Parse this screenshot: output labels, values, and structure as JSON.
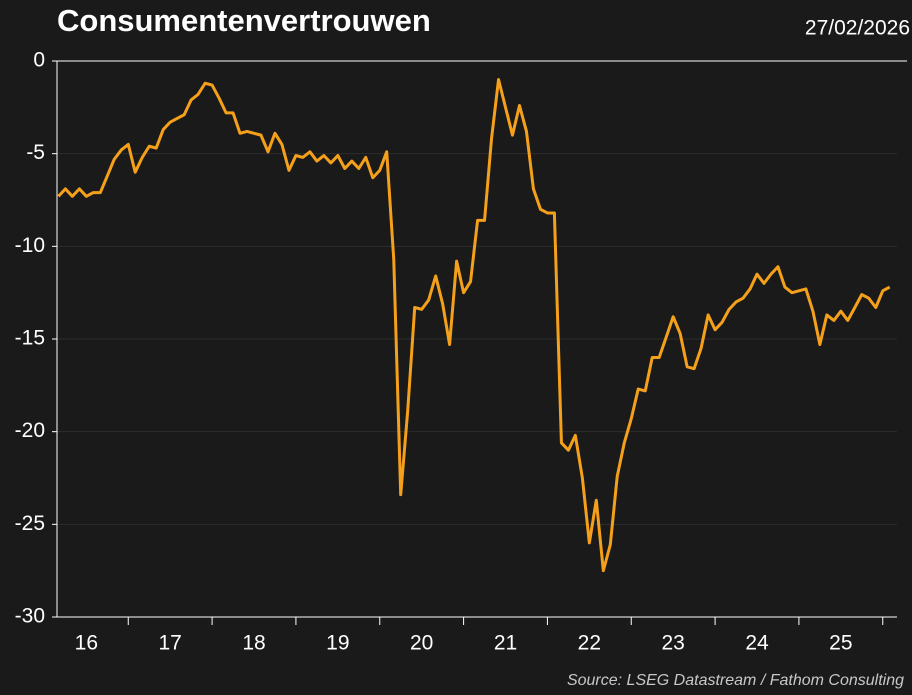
{
  "chart_data": {
    "type": "line",
    "title": "Consumentenvertrouwen",
    "date": "27/02/2026",
    "source": "Source: LSEG Datastream / Fathom Consulting",
    "x": [
      2016.167,
      2016.25,
      2016.333,
      2016.417,
      2016.5,
      2016.583,
      2016.667,
      2016.75,
      2016.833,
      2016.917,
      2017,
      2017.083,
      2017.167,
      2017.25,
      2017.333,
      2017.417,
      2017.5,
      2017.583,
      2017.667,
      2017.75,
      2017.833,
      2017.917,
      2018,
      2018.083,
      2018.167,
      2018.25,
      2018.333,
      2018.417,
      2018.5,
      2018.583,
      2018.667,
      2018.75,
      2018.833,
      2018.917,
      2019,
      2019.083,
      2019.167,
      2019.25,
      2019.333,
      2019.417,
      2019.5,
      2019.583,
      2019.667,
      2019.75,
      2019.833,
      2019.917,
      2020,
      2020.083,
      2020.167,
      2020.25,
      2020.333,
      2020.417,
      2020.5,
      2020.583,
      2020.667,
      2020.75,
      2020.833,
      2020.917,
      2021,
      2021.083,
      2021.167,
      2021.25,
      2021.333,
      2021.417,
      2021.5,
      2021.583,
      2021.667,
      2021.75,
      2021.833,
      2021.917,
      2022,
      2022.083,
      2022.167,
      2022.25,
      2022.333,
      2022.417,
      2022.5,
      2022.583,
      2022.667,
      2022.75,
      2022.833,
      2022.917,
      2023,
      2023.083,
      2023.167,
      2023.25,
      2023.333,
      2023.417,
      2023.5,
      2023.583,
      2023.667,
      2023.75,
      2023.833,
      2023.917,
      2024,
      2024.083,
      2024.167,
      2024.25,
      2024.333,
      2024.417,
      2024.5,
      2024.583,
      2024.667,
      2024.75,
      2024.833,
      2024.917,
      2025,
      2025.083,
      2025.167,
      2025.25,
      2025.333,
      2025.417,
      2025.5,
      2025.583,
      2025.667,
      2025.75,
      2025.833,
      2025.917,
      2026,
      2026.083
    ],
    "series": [
      {
        "color": "#f5a01a",
        "values": [
          -7.3,
          -6.9,
          -7.3,
          -6.9,
          -7.3,
          -7.1,
          -7.1,
          -6.2,
          -5.3,
          -4.8,
          -4.5,
          -6.0,
          -5.2,
          -4.6,
          -4.7,
          -3.7,
          -3.3,
          -3.1,
          -2.9,
          -2.1,
          -1.8,
          -1.2,
          -1.3,
          -2.0,
          -2.8,
          -2.8,
          -3.9,
          -3.8,
          -3.9,
          -4.0,
          -4.9,
          -3.9,
          -4.5,
          -5.9,
          -5.1,
          -5.2,
          -4.9,
          -5.4,
          -5.1,
          -5.5,
          -5.1,
          -5.8,
          -5.4,
          -5.8,
          -5.2,
          -6.3,
          -5.9,
          -4.9,
          -10.7,
          -23.4,
          -18.9,
          -13.3,
          -13.4,
          -12.9,
          -11.6,
          -13.1,
          -15.3,
          -10.8,
          -12.5,
          -11.9,
          -8.6,
          -8.6,
          -4.2,
          -1.0,
          -2.5,
          -4.0,
          -2.4,
          -3.8,
          -6.9,
          -8.0,
          -8.2,
          -8.2,
          -20.6,
          -21.0,
          -20.2,
          -22.5,
          -26.0,
          -23.7,
          -27.5,
          -26.1,
          -22.4,
          -20.6,
          -19.3,
          -17.7,
          -17.8,
          -16.0,
          -16.0,
          -14.9,
          -13.8,
          -14.7,
          -16.5,
          -16.6,
          -15.5,
          -13.7,
          -14.5,
          -14.1,
          -13.4,
          -13.0,
          -12.8,
          -12.3,
          -11.5,
          -12.0,
          -11.5,
          -11.1,
          -12.2,
          -12.5,
          -12.4,
          -12.3,
          -13.5,
          -15.3,
          -13.7,
          -14.0,
          -13.5,
          -14.0,
          -13.3,
          -12.6,
          -12.8,
          -13.3,
          -12.4,
          -12.2
        ]
      }
    ],
    "xlim": [
      2016.15,
      2026.17
    ],
    "xticks": [
      {
        "value": 2016.5,
        "label": "16"
      },
      {
        "value": 2017.5,
        "label": "17"
      },
      {
        "value": 2018.5,
        "label": "18"
      },
      {
        "value": 2019.5,
        "label": "19"
      },
      {
        "value": 2020.5,
        "label": "20"
      },
      {
        "value": 2021.5,
        "label": "21"
      },
      {
        "value": 2022.5,
        "label": "22"
      },
      {
        "value": 2023.5,
        "label": "23"
      },
      {
        "value": 2024.5,
        "label": "24"
      },
      {
        "value": 2025.5,
        "label": "25"
      }
    ],
    "xminor": [
      2017,
      2018,
      2019,
      2020,
      2021,
      2022,
      2023,
      2024,
      2025,
      2026
    ],
    "ylim": [
      -30,
      0
    ],
    "yticks": [
      0,
      -5,
      -10,
      -15,
      -20,
      -25,
      -30
    ],
    "grid": true
  }
}
